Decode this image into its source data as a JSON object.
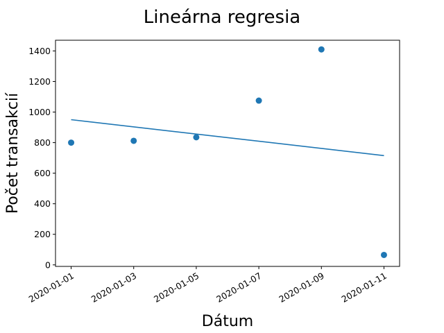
{
  "chart_data": {
    "type": "scatter",
    "title": "Lineárna regresia",
    "xlabel": "Dátum",
    "ylabel": "Počet transakcií",
    "x_ticks": [
      "2020-01-01",
      "2020-01-03",
      "2020-01-05",
      "2020-01-07",
      "2020-01-09",
      "2020-01-11"
    ],
    "y_ticks": [
      0,
      200,
      400,
      600,
      800,
      1000,
      1200,
      1400
    ],
    "ylim": [
      -10,
      1470
    ],
    "xlim": [
      "2020-12-31T12:00:00",
      "2020-01-11T12:00:00"
    ],
    "grid": false,
    "legend": "none",
    "color": "#1f77b4",
    "series": [
      {
        "kind": "scatter",
        "x": [
          "2020-01-01",
          "2020-01-03",
          "2020-01-05",
          "2020-01-07",
          "2020-01-09",
          "2020-01-11"
        ],
        "y": [
          800,
          812,
          835,
          1075,
          1410,
          65
        ]
      },
      {
        "kind": "line",
        "x": [
          "2020-01-01",
          "2020-01-11"
        ],
        "y": [
          950,
          715
        ]
      }
    ]
  }
}
